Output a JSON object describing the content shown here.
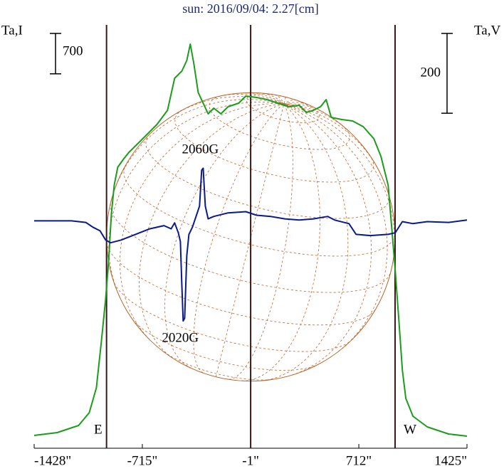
{
  "chart_data": {
    "type": "line",
    "title": "sun: 2016/09/04: 2.27[cm]",
    "y_label": "Ta,I",
    "y2_label": "Ta,V",
    "xlim": [
      -1428,
      1425
    ],
    "xticks": [
      {
        "value": -1428,
        "label": "-1428\""
      },
      {
        "value": -715,
        "label": "-715\""
      },
      {
        "value": -1,
        "label": "-1\""
      },
      {
        "value": 712,
        "label": "712\""
      },
      {
        "value": 1425,
        "label": "1425\""
      }
    ],
    "ylim": [
      0,
      7400
    ],
    "y2lim": [
      -570,
      500
    ],
    "y_scale_bar": {
      "value": 700,
      "label": "700"
    },
    "y2_scale_bar": {
      "value": 200,
      "label": "200"
    },
    "limbs": [
      {
        "label": "E",
        "x": -951
      },
      {
        "label": "W",
        "x": 951
      }
    ],
    "series": [
      {
        "name": "I",
        "color": "#1c9c1c",
        "axis": "y",
        "x": [
          -1428,
          -1276,
          -1135,
          -1065,
          -1018,
          -985,
          -957,
          -938,
          -919,
          -900,
          -877,
          -844,
          -807,
          -760,
          -689,
          -619,
          -549,
          -502,
          -455,
          -422,
          -399,
          -375,
          -347,
          -314,
          -281,
          -244,
          -197,
          -150,
          -80,
          -33,
          38,
          108,
          178,
          249,
          319,
          366,
          413,
          460,
          497,
          530,
          600,
          671,
          741,
          811,
          858,
          905,
          929,
          952,
          976,
          999,
          1022,
          1069,
          1163,
          1304,
          1425
        ],
        "values": [
          222,
          271,
          395,
          617,
          1048,
          1850,
          2590,
          3207,
          4070,
          4563,
          4872,
          4995,
          5118,
          5242,
          5427,
          5612,
          5858,
          6413,
          6537,
          6722,
          7005,
          6660,
          6167,
          5982,
          5797,
          5895,
          5797,
          5920,
          5982,
          6105,
          6080,
          6043,
          5982,
          5920,
          5945,
          5821,
          5858,
          5920,
          6043,
          5735,
          5698,
          5673,
          5575,
          5365,
          5057,
          4563,
          3823,
          3083,
          2220,
          1357,
          863,
          555,
          370,
          247,
          210
        ]
      },
      {
        "name": "V",
        "color": "#0a1a8c",
        "axis": "y2",
        "x": [
          -1428,
          -1182,
          -1088,
          -1041,
          -994,
          -957,
          -924,
          -854,
          -760,
          -666,
          -572,
          -525,
          -502,
          -478,
          -464,
          -455,
          -446,
          -436,
          -422,
          -408,
          -385,
          -361,
          -338,
          -324,
          -314,
          -300,
          -281,
          -244,
          -150,
          -33,
          38,
          131,
          225,
          319,
          413,
          507,
          553,
          647,
          694,
          788,
          905,
          952,
          999,
          1069,
          1163,
          1304,
          1425
        ],
        "values": [
          0,
          0,
          -4,
          -16,
          -25,
          -48,
          -55,
          -48,
          -34,
          -20,
          -12,
          -20,
          -5,
          -30,
          -52,
          -159,
          -251,
          -244,
          -87,
          -34,
          -16,
          11,
          37,
          127,
          132,
          37,
          5,
          11,
          20,
          23,
          14,
          11,
          5,
          2,
          5,
          11,
          2,
          -7,
          -34,
          -37,
          -34,
          -30,
          -2,
          -7,
          -2,
          -4,
          2
        ]
      }
    ],
    "annotations": [
      {
        "text": "2060G",
        "x": -314,
        "y": 132,
        "anchor": "above"
      },
      {
        "text": "2020G",
        "x": -446,
        "y": -251,
        "anchor": "below"
      }
    ]
  }
}
